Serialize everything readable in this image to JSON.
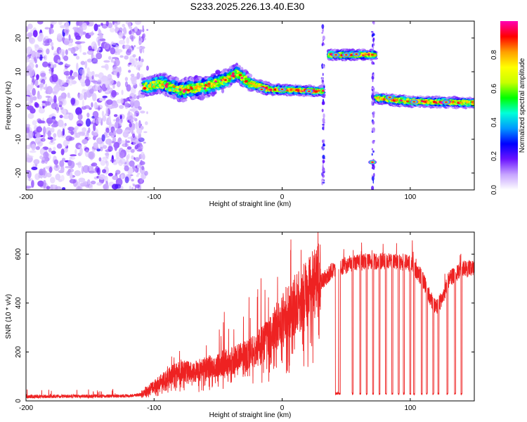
{
  "title": "S233.2025.226.13.40.E30",
  "chart_data": [
    {
      "type": "heatmap",
      "xlabel": "Height of straight line (km)",
      "ylabel": "Frequency (Hz)",
      "xlim": [
        -200,
        150
      ],
      "ylim": [
        -25,
        25
      ],
      "xticks": [
        -200,
        -100,
        0,
        100
      ],
      "yticks": [
        -20,
        -10,
        0,
        10,
        20
      ],
      "noise_region_x": [
        -200,
        -108
      ],
      "noise_tail_x": [
        -122,
        -105
      ],
      "bands": [
        {
          "x": [
            -108,
            -95
          ],
          "y": [
            5.5,
            6.5
          ],
          "halfwidth": 2.6
        },
        {
          "x": [
            -95,
            -80
          ],
          "y": [
            6.5,
            4.5
          ],
          "halfwidth": 3.0
        },
        {
          "x": [
            -80,
            -60
          ],
          "y": [
            4.5,
            5.5
          ],
          "halfwidth": 3.2
        },
        {
          "x": [
            -60,
            -45
          ],
          "y": [
            5.5,
            7.5
          ],
          "halfwidth": 3.0
        },
        {
          "x": [
            -45,
            -35
          ],
          "y": [
            7.5,
            9.5
          ],
          "halfwidth": 2.8
        },
        {
          "x": [
            -35,
            -25
          ],
          "y": [
            9.5,
            6.5
          ],
          "halfwidth": 2.4
        },
        {
          "x": [
            -25,
            -10
          ],
          "y": [
            6.5,
            4.8
          ],
          "halfwidth": 1.6
        },
        {
          "x": [
            -10,
            5
          ],
          "y": [
            4.8,
            4.6
          ],
          "halfwidth": 1.3
        },
        {
          "x": [
            5,
            32
          ],
          "y": [
            4.6,
            4.2
          ],
          "halfwidth": 1.3
        },
        {
          "x": [
            36,
            73
          ],
          "y": [
            15,
            15
          ],
          "halfwidth": 1.3
        },
        {
          "x": [
            73,
            100
          ],
          "y": [
            2.2,
            1.2
          ],
          "halfwidth": 1.4
        },
        {
          "x": [
            100,
            150
          ],
          "y": [
            1.2,
            0.8
          ],
          "halfwidth": 1.3
        }
      ],
      "vertical_gaps": [
        {
          "x": 32,
          "ylim": [
            -25,
            25
          ]
        },
        {
          "x": 71,
          "ylim": [
            -25,
            25
          ]
        }
      ],
      "spots": [
        {
          "x": 70.5,
          "y": -16.8
        },
        {
          "x": 42,
          "y": 15
        },
        {
          "x": 50,
          "y": 15
        },
        {
          "x": 58,
          "y": 15.2
        },
        {
          "x": -16,
          "y": 4.8
        },
        {
          "x": 0,
          "y": 4.8
        },
        {
          "x": 21,
          "y": 4.2
        },
        {
          "x": 84,
          "y": 2.4
        },
        {
          "x": 103,
          "y": 1.1
        },
        {
          "x": 128,
          "y": 1
        }
      ],
      "colorbar": {
        "label": "Normalized spectral amplitude",
        "range": [
          0,
          1
        ],
        "ticks": [
          "0.0",
          "0.2",
          "0.4",
          "0.6",
          "0.8"
        ],
        "colors": [
          "#ffffff",
          "#c7a4ff",
          "#6b14ff",
          "#0000ff",
          "#0098ff",
          "#00ffd9",
          "#00ff00",
          "#c8ff00",
          "#ffff00",
          "#ff9e00",
          "#ff0000",
          "#ff00b4"
        ]
      }
    },
    {
      "type": "line",
      "series_name": "SNR",
      "color": "#ee2222",
      "xlabel": "Height of straight line (km)",
      "ylabel": "SNR (10 * v/v)",
      "xlim": [
        -200,
        150
      ],
      "ylim": [
        0,
        690
      ],
      "xticks": [
        -200,
        -100,
        0,
        100
      ],
      "yticks": [
        0,
        200,
        400,
        600
      ],
      "envelope": {
        "x": [
          -200,
          -120,
          -110,
          -100,
          -90,
          -80,
          -70,
          -60,
          -50,
          -40,
          -30,
          -20,
          -10,
          0,
          10,
          20,
          30,
          40,
          50,
          60,
          70,
          80,
          90,
          100,
          110,
          115,
          120,
          125,
          130,
          140,
          150
        ],
        "y": [
          18,
          20,
          26,
          55,
          90,
          120,
          110,
          130,
          140,
          160,
          175,
          205,
          250,
          330,
          380,
          430,
          490,
          540,
          560,
          570,
          575,
          575,
          575,
          565,
          500,
          430,
          385,
          420,
          500,
          545,
          540
        ]
      },
      "dropouts": [
        42,
        43.5,
        45,
        55,
        61,
        66,
        71,
        76,
        81,
        86,
        91,
        95,
        100,
        103,
        109,
        113,
        118,
        122,
        129,
        135,
        140
      ],
      "dropout_floor": 25
    }
  ]
}
